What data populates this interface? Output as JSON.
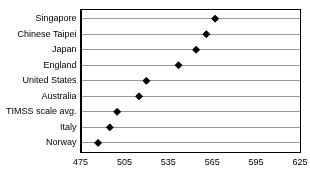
{
  "chart_data": {
    "type": "dot",
    "orientation": "horizontal",
    "categories": [
      "Singapore",
      "Chinese Taipei",
      "Japan",
      "England",
      "United States",
      "Australia",
      "TIMSS scale avg.",
      "Italy",
      "Norway"
    ],
    "values": [
      567,
      561,
      554,
      542,
      520,
      515,
      500,
      495,
      487
    ],
    "color": "#000000",
    "marker": "diamond",
    "xlim": [
      475,
      625
    ],
    "xticks": [
      475,
      505,
      535,
      565,
      595,
      625
    ],
    "grid": true
  }
}
